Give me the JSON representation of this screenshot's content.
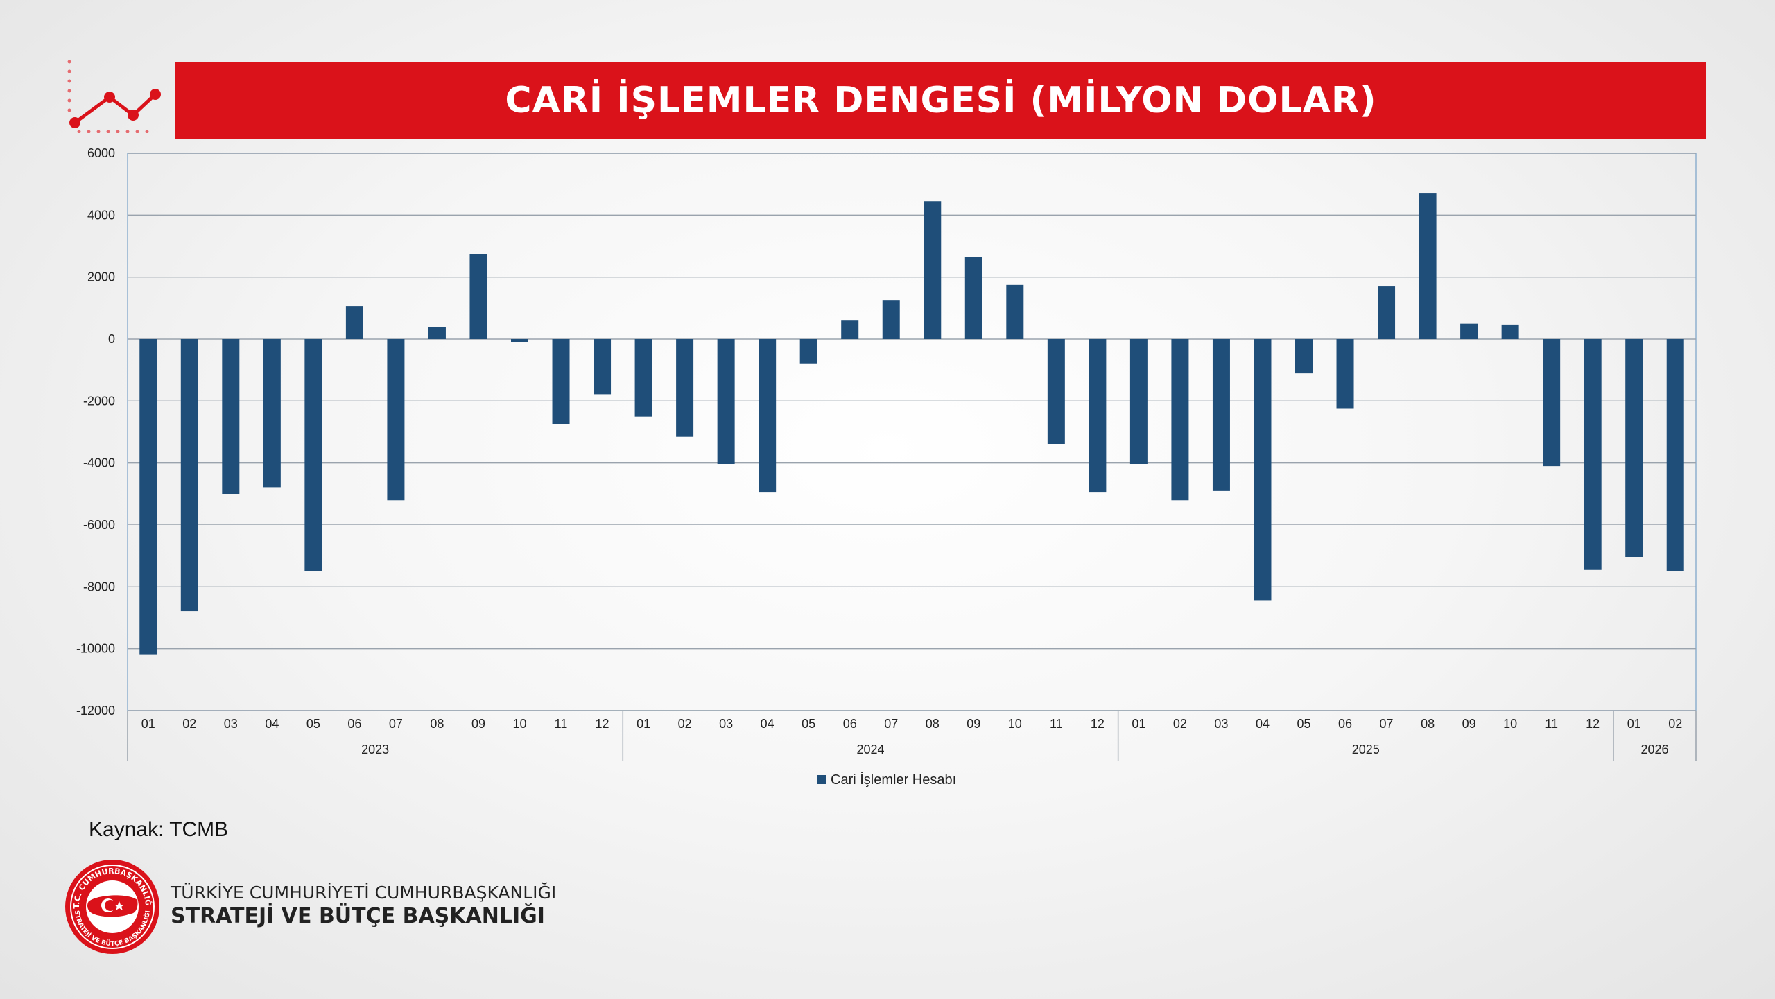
{
  "header": {
    "title": "CARİ İŞLEMLER DENGESİ (MİLYON DOLAR)"
  },
  "chart_data": {
    "type": "bar",
    "title": "CARİ İŞLEMLER DENGESİ (MİLYON DOLAR)",
    "ylim": [
      -12000,
      6000
    ],
    "yticks": [
      6000,
      4000,
      2000,
      0,
      -2000,
      -4000,
      -6000,
      -8000,
      -10000,
      -12000
    ],
    "grid": true,
    "legend_position": "bottom",
    "years": [
      {
        "label": "2023",
        "months": [
          "01",
          "02",
          "03",
          "04",
          "05",
          "06",
          "07",
          "08",
          "09",
          "10",
          "11",
          "12"
        ]
      },
      {
        "label": "2024",
        "months": [
          "01",
          "02",
          "03",
          "04",
          "05",
          "06",
          "07",
          "08",
          "09",
          "10",
          "11",
          "12"
        ]
      },
      {
        "label": "2025",
        "months": [
          "01",
          "02",
          "03",
          "04",
          "05",
          "06",
          "07",
          "08",
          "09",
          "10",
          "11",
          "12"
        ]
      },
      {
        "label": "2026",
        "months": [
          "01",
          "02"
        ]
      }
    ],
    "series": [
      {
        "name": "Cari İşlemler Hesabı",
        "color": "#1f4e79",
        "values": [
          -10200,
          -8800,
          -5000,
          -4800,
          -7500,
          1050,
          -5200,
          400,
          2750,
          -100,
          -2750,
          -1800,
          -2500,
          -3150,
          -4050,
          -4950,
          -800,
          600,
          1250,
          4450,
          2650,
          1750,
          -3400,
          -4950,
          -4050,
          -5200,
          -4900,
          -8450,
          -1100,
          -2250,
          1700,
          4700,
          500,
          450,
          -4100,
          -7450,
          -7050,
          -7500
        ]
      }
    ]
  },
  "source": {
    "text": "Kaynak: TCMB"
  },
  "org": {
    "line1": "TÜRKİYE CUMHURİYETİ CUMHURBAŞKANLIĞI",
    "line2": "STRATEJİ VE BÜTÇE BAŞKANLIĞI",
    "seal_text_top": "T.C. CUMHURBAŞKANLIĞI",
    "seal_text_bottom": "STRATEJİ VE BÜTÇE BAŞKANLIĞI"
  },
  "colors": {
    "accent": "#da121a",
    "bar": "#1f4e79",
    "grid": "#9aa3ad"
  }
}
